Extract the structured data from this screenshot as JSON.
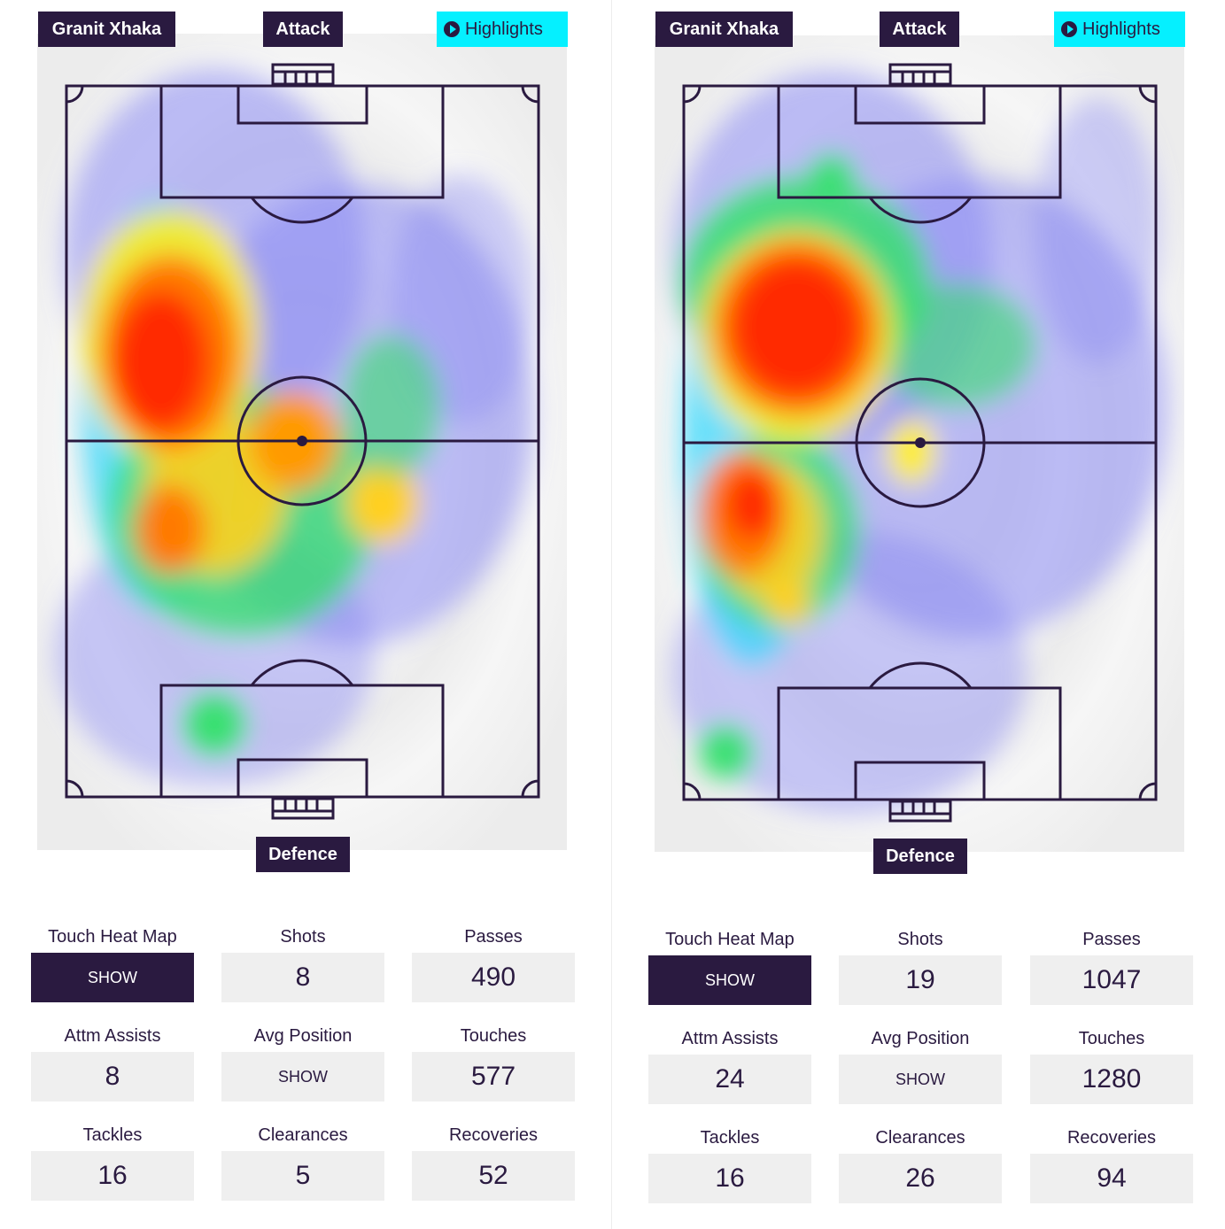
{
  "panels": [
    {
      "player": "Granit Xhaka",
      "attack_label": "Attack",
      "defence_label": "Defence",
      "highlights_label": "Highlights",
      "stats": {
        "touch_heat_map": {
          "label": "Touch Heat Map",
          "value": "SHOW"
        },
        "shots": {
          "label": "Shots",
          "value": "8"
        },
        "passes": {
          "label": "Passes",
          "value": "490"
        },
        "attm_assists": {
          "label": "Attm Assists",
          "value": "8"
        },
        "avg_position": {
          "label": "Avg Position",
          "value": "SHOW"
        },
        "touches": {
          "label": "Touches",
          "value": "577"
        },
        "tackles": {
          "label": "Tackles",
          "value": "16"
        },
        "clearances": {
          "label": "Clearances",
          "value": "5"
        },
        "recoveries": {
          "label": "Recoveries",
          "value": "52"
        }
      }
    },
    {
      "player": "Granit Xhaka",
      "attack_label": "Attack",
      "defence_label": "Defence",
      "highlights_label": "Highlights",
      "stats": {
        "touch_heat_map": {
          "label": "Touch Heat Map",
          "value": "SHOW"
        },
        "shots": {
          "label": "Shots",
          "value": "19"
        },
        "passes": {
          "label": "Passes",
          "value": "1047"
        },
        "attm_assists": {
          "label": "Attm Assists",
          "value": "24"
        },
        "avg_position": {
          "label": "Avg Position",
          "value": "SHOW"
        },
        "touches": {
          "label": "Touches",
          "value": "1280"
        },
        "tackles": {
          "label": "Tackles",
          "value": "16"
        },
        "clearances": {
          "label": "Clearances",
          "value": "26"
        },
        "recoveries": {
          "label": "Recoveries",
          "value": "94"
        }
      }
    }
  ],
  "colors": {
    "dark": "#2a1a40",
    "highlight": "#05f0ff",
    "stat_box": "#efefef",
    "heat_low": "#7b7bf0",
    "heat_mid": "#2fe060",
    "heat_high": "#ff2a00"
  }
}
